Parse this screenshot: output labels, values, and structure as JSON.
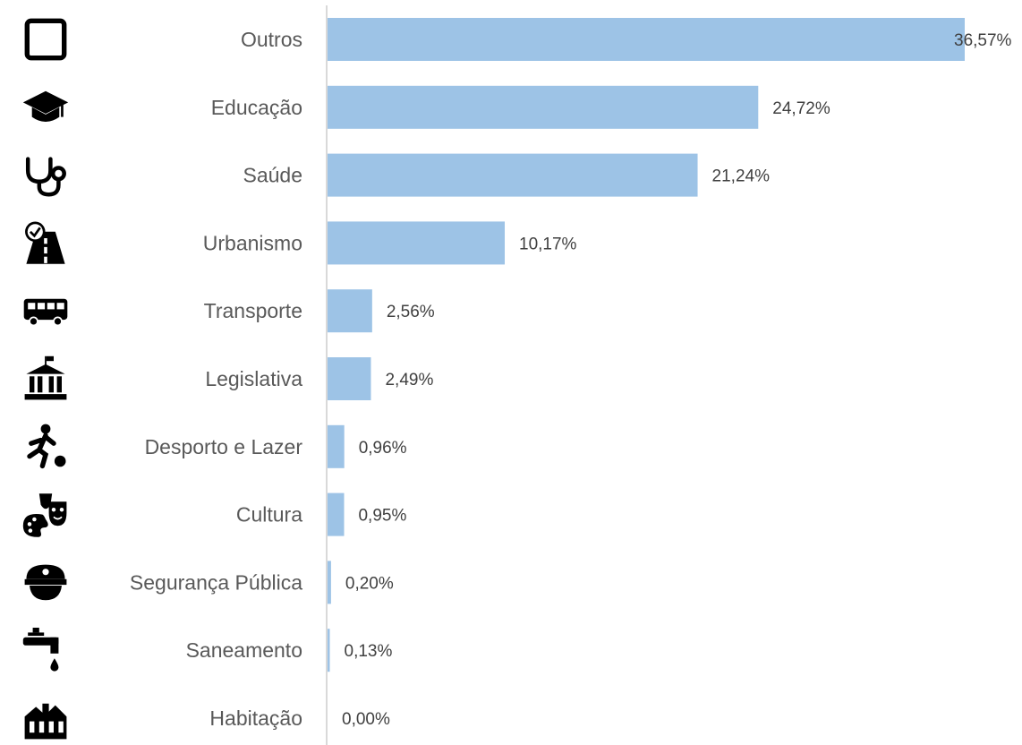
{
  "chart_data": {
    "type": "bar",
    "orientation": "horizontal",
    "title": "",
    "xlabel": "",
    "ylabel": "",
    "xlim": [
      0,
      36.57
    ],
    "grid": false,
    "legend": "none",
    "bar_color": "#9DC3E6",
    "axis_color": "#D9D9D9",
    "categories": [
      "Outros",
      "Educação",
      "Saúde",
      "Urbanismo",
      "Transporte",
      "Legislativa",
      "Desporto e Lazer",
      "Cultura",
      "Segurança Pública",
      "Saneamento",
      "Habitação"
    ],
    "values": [
      36.57,
      24.72,
      21.24,
      10.17,
      2.56,
      2.49,
      0.96,
      0.95,
      0.2,
      0.13,
      0.0
    ],
    "value_labels": [
      "36,57%",
      "24,72%",
      "21,24%",
      "10,17%",
      "2,56%",
      "2,49%",
      "0,96%",
      "0,95%",
      "0,20%",
      "0,13%",
      "0,00%"
    ],
    "icons": [
      "square-outline-icon",
      "graduation-cap-icon",
      "stethoscope-icon",
      "road-icon",
      "bus-icon",
      "government-building-icon",
      "soccer-player-icon",
      "theater-masks-palette-icon",
      "police-cap-icon",
      "water-faucet-icon",
      "houses-icon"
    ]
  }
}
